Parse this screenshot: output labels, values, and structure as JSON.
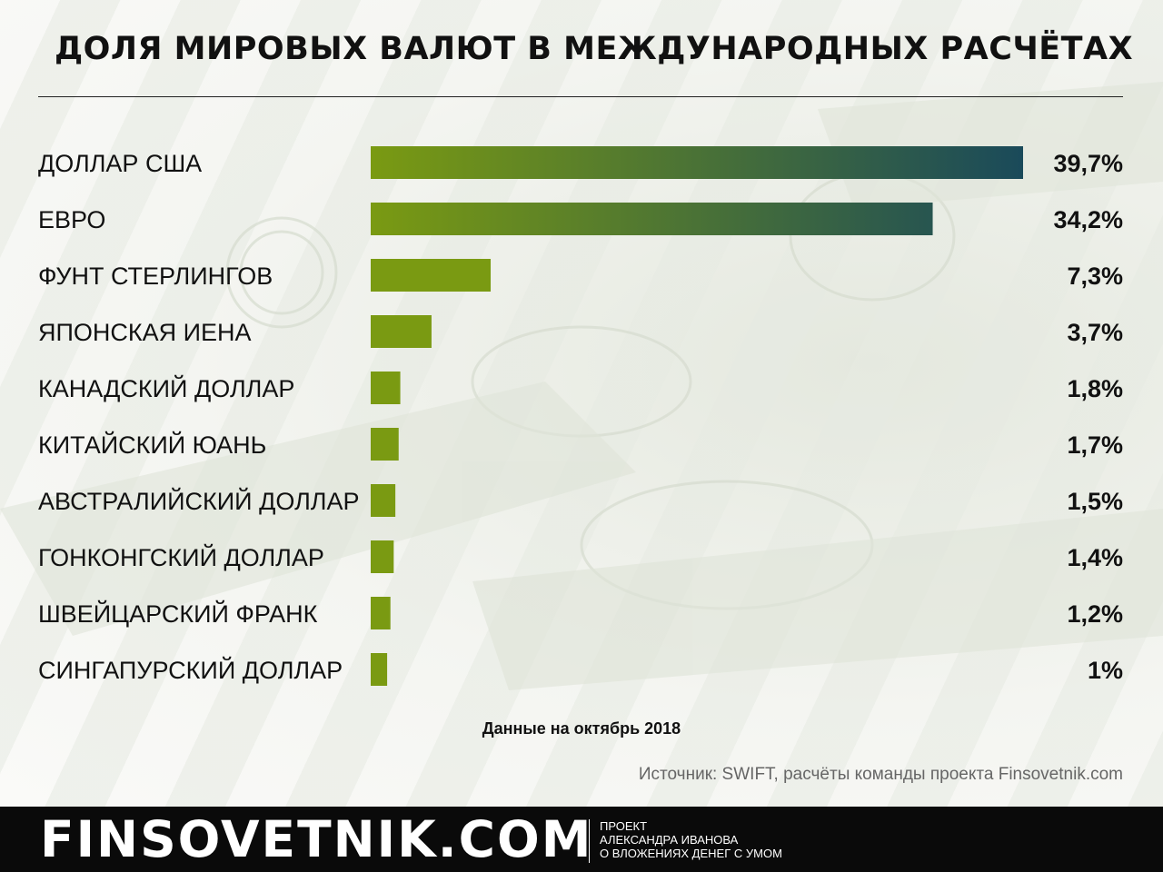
{
  "title": "ДОЛЯ МИРОВЫХ ВАЛЮТ В МЕЖДУНАРОДНЫХ РАСЧЁТАХ",
  "note": "Данные на октябрь 2018",
  "source": "Источник: SWIFT, расчёты команды проекта Finsovetnik.com",
  "footer": {
    "brand": "FINSOVETNIK.COM",
    "tagline": [
      "ПРОЕКТ",
      "АЛЕКСАНДРА ИВАНОВА",
      "О ВЛОЖЕНИЯХ ДЕНЕГ С УМОМ"
    ]
  },
  "colors": {
    "bar_start": "#7a9a12",
    "bar_end": "#1a4a5a",
    "bar_short": "#7a9a12"
  },
  "chart_data": {
    "type": "bar",
    "orientation": "horizontal",
    "categories": [
      "ДОЛЛАР США",
      "ЕВРО",
      "ФУНТ СТЕРЛИНГОВ",
      "ЯПОНСКАЯ ИЕНА",
      "КАНАДСКИЙ ДОЛЛАР",
      "КИТАЙСКИЙ ЮАНЬ",
      "АВСТРАЛИЙСКИЙ ДОЛЛАР",
      "ГОНКОНГСКИЙ ДОЛЛАР",
      "ШВЕЙЦАРСКИЙ ФРАНК",
      "СИНГАПУРСКИЙ ДОЛЛАР"
    ],
    "values": [
      39.7,
      34.2,
      7.3,
      3.7,
      1.8,
      1.7,
      1.5,
      1.4,
      1.2,
      1.0
    ],
    "value_labels": [
      "39,7%",
      "34,2%",
      "7,3%",
      "3,7%",
      "1,8%",
      "1,7%",
      "1,5%",
      "1,4%",
      "1,2%",
      "1%"
    ],
    "xlim": [
      0,
      39.7
    ],
    "grid": false,
    "legend": "none"
  }
}
